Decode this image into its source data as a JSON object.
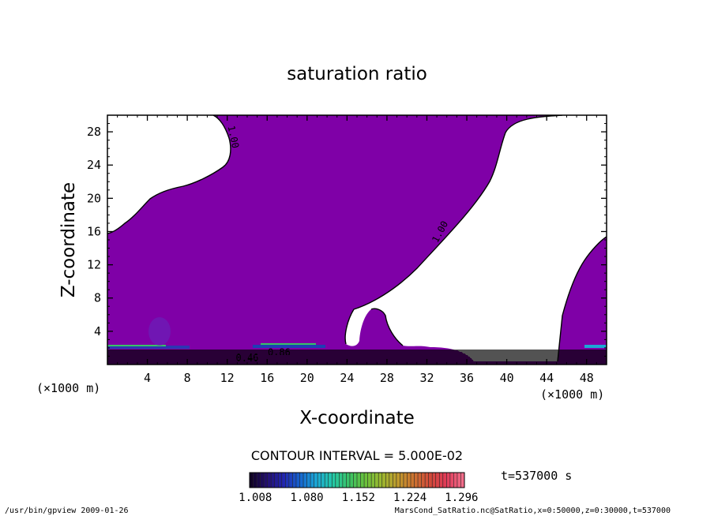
{
  "chart_data": {
    "type": "heatmap",
    "title": "saturation ratio",
    "xlabel": "X-coordinate",
    "ylabel": "Z-coordinate",
    "x_unit": "(×1000 m)",
    "z_unit": "(×1000 m)",
    "xlim": [
      0,
      50
    ],
    "ylim": [
      0,
      30
    ],
    "x_ticks": [
      4,
      8,
      12,
      16,
      20,
      24,
      28,
      32,
      36,
      40,
      44,
      48
    ],
    "y_ticks": [
      4,
      8,
      12,
      16,
      20,
      24,
      28
    ],
    "contour_interval_text": "CONTOUR INTERVAL = 5.000E-02",
    "time_label": "t=537000 s",
    "colorbar_ticks": [
      "1.008",
      "1.080",
      "1.152",
      "1.224",
      "1.296"
    ],
    "colorbar_range": [
      1.0,
      1.3
    ],
    "contour_labels": [
      {
        "text": "1.00",
        "x": 12.3,
        "y": 27.3,
        "angle": 78
      },
      {
        "text": "1.00",
        "x": 33.6,
        "y": 15.8,
        "angle": -62
      },
      {
        "text": "0.46",
        "x": 14.0,
        "y": 0.45,
        "angle": 0
      },
      {
        "text": "0.86",
        "x": 17.2,
        "y": 1.1,
        "angle": 0
      }
    ],
    "saturated_region_color": "#7f00a7",
    "colors": {
      "colorbar": [
        "#100026",
        "#241072",
        "#2226b0",
        "#1565cf",
        "#1ba8d6",
        "#25c9a8",
        "#39c267",
        "#69c13b",
        "#9bb830",
        "#bf9a2c",
        "#cc7230",
        "#d24a3b",
        "#e03a58",
        "#f26d8a"
      ]
    }
  },
  "footer": {
    "left": "/usr/bin/gpview  2009-01-26",
    "right": "MarsCond_SatRatio.nc@SatRatio,x=0:50000,z=0:30000,t=537000"
  }
}
